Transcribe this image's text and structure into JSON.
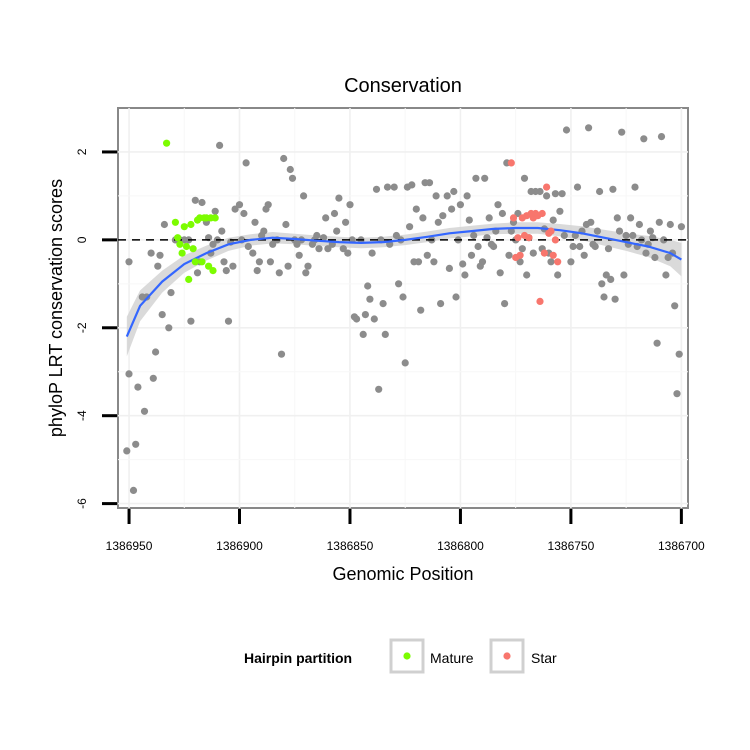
{
  "chart_data": {
    "type": "scatter",
    "title": "Conservation",
    "xlabel": "Genomic Position",
    "ylabel": "phyloP LRT conservation scores",
    "xlim": [
      1386955,
      1386697
    ],
    "ylim": [
      -6.1,
      3.0
    ],
    "x_reversed": true,
    "x_ticks": [
      1386950,
      1386900,
      1386850,
      1386800,
      1386750,
      1386700
    ],
    "y_ticks": [
      2,
      0,
      -2,
      -4,
      -6
    ],
    "grid": true,
    "reference_line_y": 0,
    "legend": {
      "title": "Hairpin partition",
      "placement": "bottom",
      "entries": [
        {
          "label": "Mature",
          "color": "#7CFC00"
        },
        {
          "label": "Star",
          "color": "#F8766D"
        }
      ]
    },
    "colors": {
      "background_points": "#8C8C8C",
      "smooth_line": "#3366FF",
      "confidence_band": "#D3D3D3"
    },
    "series": [
      {
        "category": "background",
        "points": [
          [
            1386951,
            -4.8
          ],
          [
            1386950,
            -0.5
          ],
          [
            1386950,
            -3.05
          ],
          [
            1386948,
            -5.7
          ],
          [
            1386947,
            -4.65
          ],
          [
            1386946,
            -3.35
          ],
          [
            1386944,
            -1.3
          ],
          [
            1386943,
            -3.9
          ],
          [
            1386942,
            -1.3
          ],
          [
            1386940,
            -0.3
          ],
          [
            1386939,
            -3.15
          ],
          [
            1386938,
            -2.55
          ],
          [
            1386937,
            -0.6
          ],
          [
            1386936,
            -0.35
          ],
          [
            1386935,
            -1.7
          ],
          [
            1386934,
            0.35
          ],
          [
            1386932,
            -2.0
          ],
          [
            1386931,
            -1.2
          ],
          [
            1386929,
            0.0
          ],
          [
            1386927,
            0.0
          ],
          [
            1386925,
            0.0
          ],
          [
            1386923,
            0.0
          ],
          [
            1386922,
            -1.85
          ],
          [
            1386920,
            0.9
          ],
          [
            1386919,
            -0.75
          ],
          [
            1386918,
            -0.5
          ],
          [
            1386917,
            0.85
          ],
          [
            1386915,
            0.4
          ],
          [
            1386914,
            0.05
          ],
          [
            1386913,
            -0.3
          ],
          [
            1386912,
            -0.1
          ],
          [
            1386911,
            0.65
          ],
          [
            1386910,
            0.0
          ],
          [
            1386909,
            2.15
          ],
          [
            1386908,
            0.2
          ],
          [
            1386907,
            -0.5
          ],
          [
            1386906,
            -0.7
          ],
          [
            1386905,
            -1.85
          ],
          [
            1386904,
            -0.05
          ],
          [
            1386903,
            -0.6
          ],
          [
            1386902,
            0.7
          ],
          [
            1386900,
            0.8
          ],
          [
            1386899,
            0.0
          ],
          [
            1386898,
            0.6
          ],
          [
            1386897,
            1.75
          ],
          [
            1386896,
            -0.15
          ],
          [
            1386894,
            -0.3
          ],
          [
            1386893,
            0.4
          ],
          [
            1386892,
            -0.7
          ],
          [
            1386891,
            -0.5
          ],
          [
            1386890,
            0.1
          ],
          [
            1386889,
            0.2
          ],
          [
            1386888,
            0.7
          ],
          [
            1386887,
            0.8
          ],
          [
            1386886,
            -0.5
          ],
          [
            1386885,
            -0.1
          ],
          [
            1386883,
            0.0
          ],
          [
            1386882,
            -0.75
          ],
          [
            1386881,
            -2.6
          ],
          [
            1386880,
            1.85
          ],
          [
            1386879,
            0.35
          ],
          [
            1386878,
            -0.6
          ],
          [
            1386877,
            1.6
          ],
          [
            1386876,
            1.4
          ],
          [
            1386875,
            0.0
          ],
          [
            1386874,
            -0.1
          ],
          [
            1386873,
            -0.35
          ],
          [
            1386872,
            0.0
          ],
          [
            1386871,
            1.0
          ],
          [
            1386870,
            -0.75
          ],
          [
            1386869,
            -0.6
          ],
          [
            1386867,
            -0.1
          ],
          [
            1386866,
            0.0
          ],
          [
            1386865,
            0.1
          ],
          [
            1386864,
            -0.2
          ],
          [
            1386862,
            0.05
          ],
          [
            1386861,
            0.5
          ],
          [
            1386860,
            -0.2
          ],
          [
            1386858,
            -0.1
          ],
          [
            1386857,
            0.6
          ],
          [
            1386856,
            0.2
          ],
          [
            1386855,
            0.95
          ],
          [
            1386853,
            -0.2
          ],
          [
            1386852,
            0.4
          ],
          [
            1386851,
            -0.3
          ],
          [
            1386850,
            0.8
          ],
          [
            1386849,
            0.0
          ],
          [
            1386848,
            -1.75
          ],
          [
            1386847,
            -1.8
          ],
          [
            1386845,
            0.0
          ],
          [
            1386844,
            -2.15
          ],
          [
            1386843,
            -1.7
          ],
          [
            1386842,
            -1.05
          ],
          [
            1386841,
            -1.35
          ],
          [
            1386840,
            -0.3
          ],
          [
            1386839,
            -1.8
          ],
          [
            1386838,
            1.15
          ],
          [
            1386837,
            -3.4
          ],
          [
            1386836,
            0.0
          ],
          [
            1386835,
            -1.45
          ],
          [
            1386834,
            -2.15
          ],
          [
            1386833,
            1.2
          ],
          [
            1386832,
            -0.1
          ],
          [
            1386830,
            1.2
          ],
          [
            1386829,
            0.1
          ],
          [
            1386828,
            -1.0
          ],
          [
            1386827,
            0.0
          ],
          [
            1386826,
            -1.3
          ],
          [
            1386825,
            -2.8
          ],
          [
            1386824,
            1.2
          ],
          [
            1386823,
            0.3
          ],
          [
            1386822,
            1.25
          ],
          [
            1386821,
            -0.5
          ],
          [
            1386820,
            0.7
          ],
          [
            1386819,
            -0.5
          ],
          [
            1386818,
            -1.6
          ],
          [
            1386817,
            0.5
          ],
          [
            1386816,
            1.3
          ],
          [
            1386815,
            -0.35
          ],
          [
            1386814,
            1.3
          ],
          [
            1386813,
            0.0
          ],
          [
            1386812,
            -0.5
          ],
          [
            1386811,
            1.0
          ],
          [
            1386810,
            0.4
          ],
          [
            1386809,
            -1.45
          ],
          [
            1386808,
            0.55
          ],
          [
            1386806,
            1.0
          ],
          [
            1386805,
            -0.65
          ],
          [
            1386804,
            0.7
          ],
          [
            1386803,
            1.1
          ],
          [
            1386802,
            -1.3
          ],
          [
            1386801,
            0.0
          ],
          [
            1386800,
            0.8
          ],
          [
            1386799,
            -0.55
          ],
          [
            1386798,
            -0.8
          ],
          [
            1386797,
            1.0
          ],
          [
            1386796,
            0.45
          ],
          [
            1386795,
            -0.35
          ],
          [
            1386794,
            0.1
          ],
          [
            1386793,
            1.4
          ],
          [
            1386792,
            -0.15
          ],
          [
            1386791,
            -0.6
          ],
          [
            1386790,
            -0.5
          ],
          [
            1386789,
            1.4
          ],
          [
            1386788,
            0.05
          ],
          [
            1386787,
            0.5
          ],
          [
            1386786,
            -0.1
          ],
          [
            1386785,
            -0.15
          ],
          [
            1386784,
            0.2
          ],
          [
            1386783,
            0.8
          ],
          [
            1386782,
            -0.75
          ],
          [
            1386781,
            0.6
          ],
          [
            1386780,
            -1.45
          ],
          [
            1386779,
            1.75
          ],
          [
            1386778,
            -0.35
          ],
          [
            1386777,
            0.2
          ],
          [
            1386776,
            0.4
          ],
          [
            1386775,
            0.0
          ],
          [
            1386774,
            0.6
          ],
          [
            1386773,
            -0.5
          ],
          [
            1386772,
            -0.2
          ],
          [
            1386771,
            1.4
          ],
          [
            1386770,
            -0.8
          ],
          [
            1386769,
            0.05
          ],
          [
            1386768,
            1.1
          ],
          [
            1386767,
            -0.3
          ],
          [
            1386766,
            1.1
          ],
          [
            1386764,
            1.1
          ],
          [
            1386763,
            -0.2
          ],
          [
            1386762,
            0.25
          ],
          [
            1386761,
            1.0
          ],
          [
            1386760,
            -0.3
          ],
          [
            1386759,
            -0.5
          ],
          [
            1386758,
            0.45
          ],
          [
            1386757,
            1.05
          ],
          [
            1386756,
            -0.8
          ],
          [
            1386755,
            0.65
          ],
          [
            1386754,
            1.05
          ],
          [
            1386753,
            0.1
          ],
          [
            1386752,
            2.5
          ],
          [
            1386750,
            -0.5
          ],
          [
            1386749,
            -0.15
          ],
          [
            1386748,
            0.1
          ],
          [
            1386747,
            1.2
          ],
          [
            1386746,
            -0.15
          ],
          [
            1386745,
            0.2
          ],
          [
            1386744,
            -0.35
          ],
          [
            1386743,
            0.35
          ],
          [
            1386742,
            2.55
          ],
          [
            1386741,
            0.4
          ],
          [
            1386740,
            -0.1
          ],
          [
            1386739,
            -0.15
          ],
          [
            1386738,
            0.2
          ],
          [
            1386737,
            1.1
          ],
          [
            1386736,
            -1.0
          ],
          [
            1386735,
            -1.3
          ],
          [
            1386734,
            -0.8
          ],
          [
            1386733,
            -0.2
          ],
          [
            1386732,
            -0.9
          ],
          [
            1386731,
            1.15
          ],
          [
            1386730,
            -1.35
          ],
          [
            1386729,
            0.5
          ],
          [
            1386728,
            0.2
          ],
          [
            1386727,
            2.45
          ],
          [
            1386726,
            -0.8
          ],
          [
            1386725,
            0.1
          ],
          [
            1386724,
            -0.1
          ],
          [
            1386723,
            0.5
          ],
          [
            1386722,
            0.1
          ],
          [
            1386721,
            1.2
          ],
          [
            1386720,
            -0.15
          ],
          [
            1386719,
            0.35
          ],
          [
            1386718,
            0.0
          ],
          [
            1386717,
            2.3
          ],
          [
            1386716,
            -0.3
          ],
          [
            1386715,
            -0.1
          ],
          [
            1386714,
            0.2
          ],
          [
            1386713,
            0.05
          ],
          [
            1386712,
            -0.4
          ],
          [
            1386711,
            -2.35
          ],
          [
            1386710,
            0.4
          ],
          [
            1386709,
            2.35
          ],
          [
            1386708,
            0.0
          ],
          [
            1386707,
            -0.8
          ],
          [
            1386706,
            -0.4
          ],
          [
            1386705,
            0.35
          ],
          [
            1386704,
            -0.3
          ],
          [
            1386703,
            -1.5
          ],
          [
            1386702,
            -3.5
          ],
          [
            1386701,
            -2.6
          ],
          [
            1386700,
            0.3
          ]
        ]
      },
      {
        "category": "Mature",
        "points": [
          [
            1386933,
            2.2
          ],
          [
            1386929,
            0.4
          ],
          [
            1386928,
            0.05
          ],
          [
            1386927,
            -0.1
          ],
          [
            1386926,
            -0.3
          ],
          [
            1386925,
            0.3
          ],
          [
            1386924,
            -0.15
          ],
          [
            1386923,
            -0.9
          ],
          [
            1386922,
            0.35
          ],
          [
            1386921,
            -0.2
          ],
          [
            1386920,
            -0.5
          ],
          [
            1386919,
            0.45
          ],
          [
            1386918,
            0.5
          ],
          [
            1386917,
            -0.5
          ],
          [
            1386916,
            0.5
          ],
          [
            1386915,
            0.5
          ],
          [
            1386914,
            -0.6
          ],
          [
            1386913,
            0.5
          ],
          [
            1386912,
            -0.7
          ],
          [
            1386911,
            0.5
          ]
        ]
      },
      {
        "category": "Star",
        "points": [
          [
            1386777,
            1.75
          ],
          [
            1386776,
            0.5
          ],
          [
            1386775,
            -0.4
          ],
          [
            1386774,
            0.05
          ],
          [
            1386773,
            -0.35
          ],
          [
            1386772,
            0.5
          ],
          [
            1386771,
            0.1
          ],
          [
            1386770,
            0.55
          ],
          [
            1386769,
            0.05
          ],
          [
            1386768,
            0.6
          ],
          [
            1386767,
            0.5
          ],
          [
            1386766,
            0.6
          ],
          [
            1386765,
            0.55
          ],
          [
            1386764,
            -1.4
          ],
          [
            1386763,
            0.6
          ],
          [
            1386762,
            -0.3
          ],
          [
            1386761,
            1.2
          ],
          [
            1386760,
            0.15
          ],
          [
            1386759,
            0.2
          ],
          [
            1386758,
            -0.35
          ],
          [
            1386757,
            0.0
          ],
          [
            1386756,
            -0.5
          ]
        ]
      }
    ],
    "smooth": [
      [
        1386951,
        -2.2
      ],
      [
        1386945,
        -1.5
      ],
      [
        1386935,
        -0.95
      ],
      [
        1386925,
        -0.55
      ],
      [
        1386915,
        -0.3
      ],
      [
        1386905,
        -0.1
      ],
      [
        1386895,
        0.0
      ],
      [
        1386885,
        0.05
      ],
      [
        1386875,
        0.02
      ],
      [
        1386865,
        -0.02
      ],
      [
        1386855,
        -0.05
      ],
      [
        1386845,
        -0.07
      ],
      [
        1386835,
        -0.05
      ],
      [
        1386825,
        0.0
      ],
      [
        1386815,
        0.07
      ],
      [
        1386805,
        0.15
      ],
      [
        1386795,
        0.2
      ],
      [
        1386785,
        0.25
      ],
      [
        1386775,
        0.27
      ],
      [
        1386765,
        0.27
      ],
      [
        1386755,
        0.22
      ],
      [
        1386745,
        0.15
      ],
      [
        1386735,
        0.05
      ],
      [
        1386725,
        -0.05
      ],
      [
        1386715,
        -0.15
      ],
      [
        1386705,
        -0.3
      ],
      [
        1386700,
        -0.45
      ]
    ],
    "smooth_band_width": [
      0.45,
      0.35,
      0.25,
      0.2,
      0.17,
      0.15,
      0.13,
      0.13,
      0.12,
      0.12,
      0.12,
      0.12,
      0.12,
      0.12,
      0.12,
      0.12,
      0.12,
      0.12,
      0.13,
      0.13,
      0.14,
      0.16,
      0.18,
      0.2,
      0.24,
      0.3,
      0.38
    ]
  }
}
